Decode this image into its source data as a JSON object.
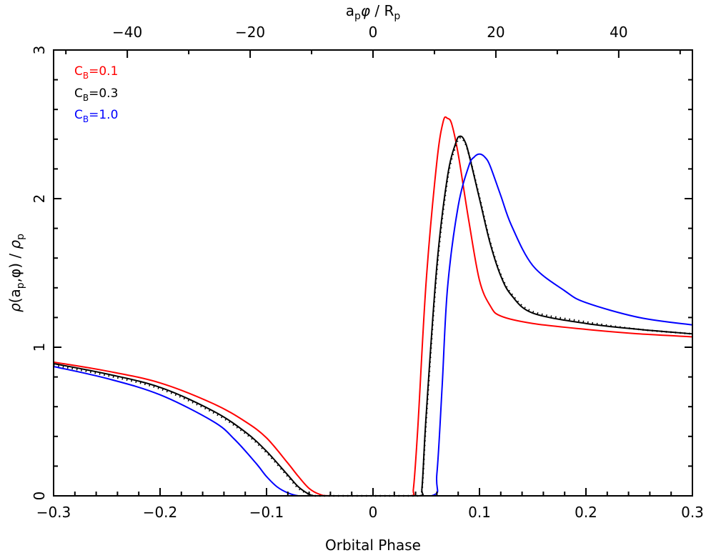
{
  "chart_data": {
    "type": "line",
    "title": "",
    "xlabel": "Orbital Phase",
    "ylabel": "ρ(a_p,φ) / ρ_p",
    "top_xlabel": "a_p φ / R_p",
    "xlim": [
      -0.3,
      0.3
    ],
    "ylim": [
      0,
      3
    ],
    "top_xlim": [
      -52,
      52
    ],
    "grid": false,
    "legend_position": "upper-left",
    "x_ticks": [
      "-0.3",
      "-0.2",
      "-0.1",
      "0",
      "0.1",
      "0.2",
      "0.3"
    ],
    "top_x_ticks": [
      "-40",
      "-20",
      "0",
      "20",
      "40"
    ],
    "y_ticks": [
      "0",
      "1",
      "2",
      "3"
    ],
    "series": [
      {
        "name": "C_B=0.1",
        "color": "#ff0000",
        "style": "solid",
        "x": [
          -0.3,
          -0.25,
          -0.2,
          -0.15,
          -0.12,
          -0.1,
          -0.08,
          -0.07,
          -0.06,
          -0.05,
          -0.04,
          0.0,
          0.035,
          0.038,
          0.042,
          0.05,
          0.06,
          0.066,
          0.07,
          0.074,
          0.08,
          0.09,
          0.1,
          0.11,
          0.12,
          0.15,
          0.2,
          0.25,
          0.3
        ],
        "values": [
          0.9,
          0.84,
          0.76,
          0.62,
          0.5,
          0.39,
          0.22,
          0.13,
          0.05,
          0.01,
          0.0,
          0.0,
          0.0,
          0.05,
          0.45,
          1.45,
          2.25,
          2.52,
          2.54,
          2.5,
          2.3,
          1.85,
          1.45,
          1.28,
          1.21,
          1.16,
          1.12,
          1.09,
          1.07
        ]
      },
      {
        "name": "C_B=0.3",
        "color": "#000000",
        "style": "solid",
        "x": [
          -0.3,
          -0.25,
          -0.2,
          -0.15,
          -0.12,
          -0.1,
          -0.08,
          -0.07,
          -0.06,
          -0.055,
          -0.05,
          0.0,
          0.043,
          0.046,
          0.05,
          0.06,
          0.07,
          0.078,
          0.082,
          0.086,
          0.09,
          0.1,
          0.11,
          0.12,
          0.13,
          0.15,
          0.2,
          0.25,
          0.3
        ],
        "values": [
          0.89,
          0.82,
          0.73,
          0.57,
          0.43,
          0.3,
          0.14,
          0.06,
          0.01,
          0.0,
          0.0,
          0.0,
          0.0,
          0.05,
          0.55,
          1.55,
          2.15,
          2.38,
          2.42,
          2.39,
          2.3,
          2.0,
          1.7,
          1.48,
          1.35,
          1.23,
          1.16,
          1.12,
          1.09
        ]
      },
      {
        "name": "C_B=0.3 (dotted)",
        "color": "#000000",
        "style": "dotted",
        "x": [
          -0.3,
          -0.25,
          -0.2,
          -0.15,
          -0.12,
          -0.1,
          -0.08,
          -0.07,
          -0.06,
          -0.055,
          -0.05,
          0.0,
          0.043,
          0.046,
          0.05,
          0.06,
          0.07,
          0.078,
          0.082,
          0.086,
          0.09,
          0.1,
          0.11,
          0.12,
          0.13,
          0.15,
          0.2,
          0.25,
          0.3
        ],
        "values": [
          0.88,
          0.81,
          0.72,
          0.56,
          0.42,
          0.29,
          0.13,
          0.05,
          0.01,
          0.0,
          0.0,
          0.0,
          0.0,
          0.04,
          0.52,
          1.52,
          2.13,
          2.36,
          2.41,
          2.38,
          2.3,
          2.01,
          1.71,
          1.49,
          1.36,
          1.24,
          1.17,
          1.12,
          1.09
        ]
      },
      {
        "name": "C_B=1.0",
        "color": "#0000ff",
        "style": "solid",
        "x": [
          -0.3,
          -0.25,
          -0.2,
          -0.15,
          -0.13,
          -0.11,
          -0.1,
          -0.09,
          -0.08,
          -0.07,
          -0.06,
          0.0,
          0.055,
          0.06,
          0.065,
          0.07,
          0.08,
          0.09,
          0.095,
          0.1,
          0.105,
          0.11,
          0.12,
          0.13,
          0.15,
          0.18,
          0.2,
          0.25,
          0.3
        ],
        "values": [
          0.87,
          0.79,
          0.68,
          0.5,
          0.38,
          0.22,
          0.13,
          0.06,
          0.02,
          0.0,
          0.0,
          0.0,
          0.0,
          0.15,
          0.75,
          1.4,
          1.95,
          2.22,
          2.28,
          2.3,
          2.28,
          2.22,
          2.02,
          1.82,
          1.55,
          1.38,
          1.3,
          1.2,
          1.15
        ]
      }
    ],
    "annotations": [
      {
        "text": "C_B=0.1",
        "color": "#ff0000"
      },
      {
        "text": "C_B=0.3",
        "color": "#000000"
      },
      {
        "text": "C_B=1.0",
        "color": "#0000ff"
      }
    ]
  },
  "legend": {
    "items": [
      {
        "base": "C",
        "sub": "B",
        "rest": "=0.1",
        "color": "#ff0000"
      },
      {
        "base": "C",
        "sub": "B",
        "rest": "=0.3",
        "color": "#000000"
      },
      {
        "base": "C",
        "sub": "B",
        "rest": "=1.0",
        "color": "#0000ff"
      }
    ]
  },
  "axes": {
    "bottom_label": "Orbital Phase",
    "top_label_parts": {
      "a": "a",
      "p": "p",
      "phi": "φ",
      "slash": " / ",
      "R": "R",
      "Rsub": "p"
    },
    "left_label_parts": {
      "rho": "ρ",
      "open": "(",
      "a": "a",
      "p": "p",
      "comma_phi": ",φ)",
      "slash": " / ",
      "rho2": "ρ",
      "p2": "p"
    }
  }
}
